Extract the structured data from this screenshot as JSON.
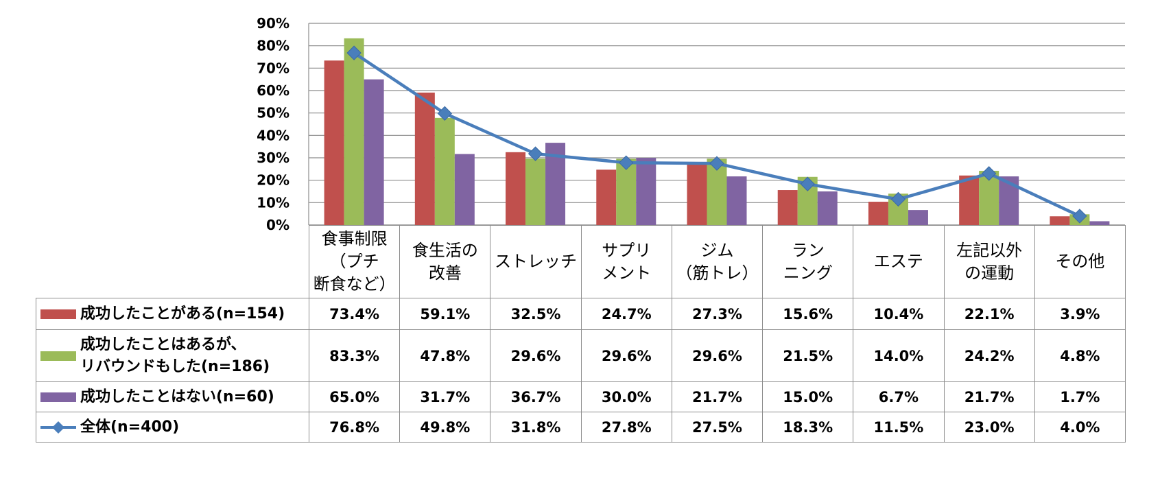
{
  "chart_data": {
    "type": "bar",
    "categories": [
      "食事制限\n（プチ\n断食など）",
      "食生活の\n改善",
      "ストレッチ",
      "サプリ\nメント",
      "ジム\n（筋トレ）",
      "ラン\nニング",
      "エステ",
      "左記以外\nの運動",
      "その他"
    ],
    "ylim": [
      0,
      90
    ],
    "yticks": [
      "0%",
      "10%",
      "20%",
      "30%",
      "40%",
      "50%",
      "60%",
      "70%",
      "80%",
      "90%"
    ],
    "grid": true,
    "legend_placement": "table-left",
    "series": [
      {
        "name": "成功したことがある(n=154)",
        "type": "bar",
        "color": "#c0504d",
        "values": [
          73.4,
          59.1,
          32.5,
          24.7,
          27.3,
          15.6,
          10.4,
          22.1,
          3.9
        ],
        "labels": [
          "73.4%",
          "59.1%",
          "32.5%",
          "24.7%",
          "27.3%",
          "15.6%",
          "10.4%",
          "22.1%",
          "3.9%"
        ]
      },
      {
        "name": "成功したことはあるが、\nリバウンドもした(n=186)",
        "type": "bar",
        "color": "#9bbb59",
        "values": [
          83.3,
          47.8,
          29.6,
          29.6,
          29.6,
          21.5,
          14.0,
          24.2,
          4.8
        ],
        "labels": [
          "83.3%",
          "47.8%",
          "29.6%",
          "29.6%",
          "29.6%",
          "21.5%",
          "14.0%",
          "24.2%",
          "4.8%"
        ]
      },
      {
        "name": "成功したことはない(n=60)",
        "type": "bar",
        "color": "#8064a2",
        "values": [
          65.0,
          31.7,
          36.7,
          30.0,
          21.7,
          15.0,
          6.7,
          21.7,
          1.7
        ],
        "labels": [
          "65.0%",
          "31.7%",
          "36.7%",
          "30.0%",
          "21.7%",
          "15.0%",
          "6.7%",
          "21.7%",
          "1.7%"
        ]
      },
      {
        "name": "全体(n=400)",
        "type": "line",
        "color": "#4a7ebb",
        "values": [
          76.8,
          49.8,
          31.8,
          27.8,
          27.5,
          18.3,
          11.5,
          23.0,
          4.0
        ],
        "labels": [
          "76.8%",
          "49.8%",
          "31.8%",
          "27.8%",
          "27.5%",
          "18.3%",
          "11.5%",
          "23.0%",
          "4.0%"
        ]
      }
    ]
  }
}
